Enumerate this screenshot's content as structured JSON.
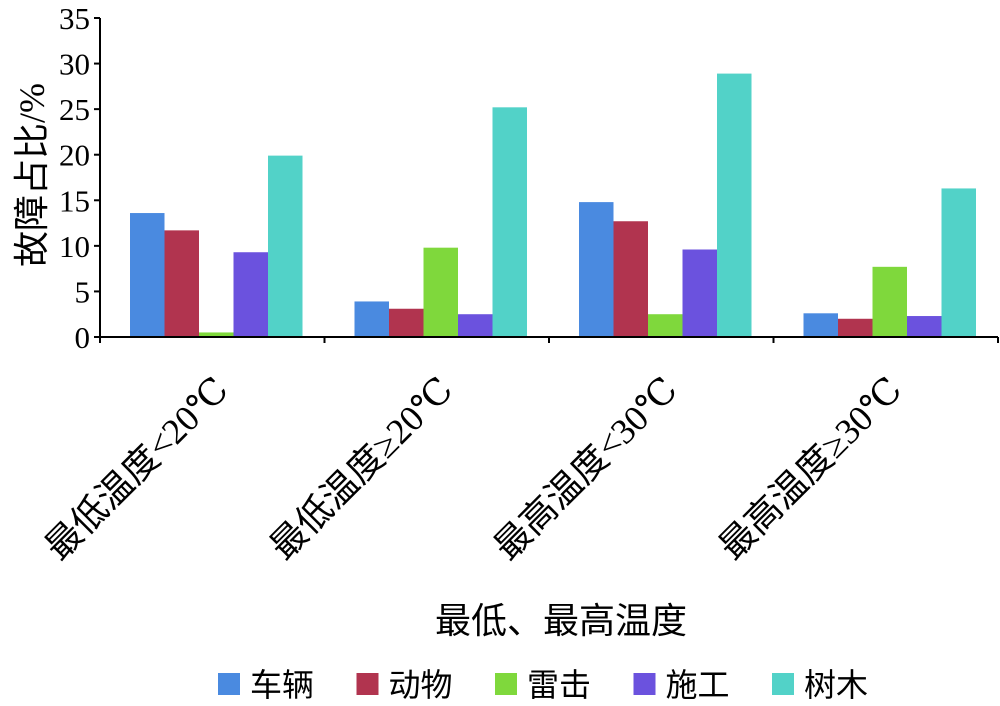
{
  "chart_data": {
    "type": "bar",
    "categories": [
      "最低温度<20℃",
      "最低温度≥20℃",
      "最高温度<30℃",
      "最高温度≥30℃"
    ],
    "series": [
      {
        "name": "车辆",
        "color": "#4a8ae0",
        "values": [
          13.6,
          3.9,
          14.8,
          2.6
        ]
      },
      {
        "name": "动物",
        "color": "#b1344f",
        "values": [
          11.7,
          3.1,
          12.7,
          2.0
        ]
      },
      {
        "name": "雷击",
        "color": "#7fd83c",
        "values": [
          0.5,
          9.8,
          2.5,
          7.7
        ]
      },
      {
        "name": "施工",
        "color": "#6b52de",
        "values": [
          9.3,
          2.5,
          9.6,
          2.3
        ]
      },
      {
        "name": "树木",
        "color": "#52d2c8",
        "values": [
          19.9,
          25.2,
          28.9,
          16.3
        ]
      }
    ],
    "xlabel": "最低、最高温度",
    "ylabel": "故障占比/%",
    "ylim": [
      0,
      35
    ],
    "yticks": [
      0,
      5,
      10,
      15,
      20,
      25,
      30,
      35
    ],
    "grid": false,
    "legend": "bottom"
  }
}
